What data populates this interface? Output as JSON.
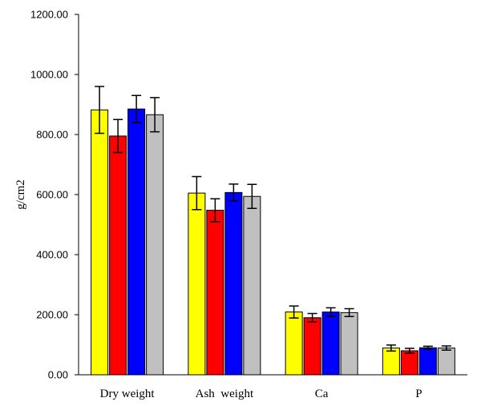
{
  "chart_data": {
    "type": "bar",
    "title": "",
    "xlabel": "",
    "ylabel": "g/cm2",
    "ylim": [
      0,
      1200
    ],
    "yticks": [
      "0.00",
      "200.00",
      "400.00",
      "600.00",
      "800.00",
      "1000.00",
      "1200.00"
    ],
    "categories": [
      "Dry weight",
      "Ash  weight",
      "Ca",
      "P"
    ],
    "grid": false,
    "series": [
      {
        "color": "#ffff00",
        "values": [
          882,
          605,
          209,
          89
        ],
        "errors": [
          78,
          55,
          20,
          10
        ]
      },
      {
        "color": "#ff0000",
        "values": [
          795,
          548,
          190,
          80
        ],
        "errors": [
          55,
          38,
          14,
          8
        ]
      },
      {
        "color": "#0000ff",
        "values": [
          885,
          607,
          209,
          90
        ],
        "errors": [
          45,
          28,
          14,
          5
        ]
      },
      {
        "color": "#c0c0c0",
        "values": [
          866,
          594,
          207,
          89
        ],
        "errors": [
          57,
          40,
          13,
          7
        ]
      }
    ]
  }
}
